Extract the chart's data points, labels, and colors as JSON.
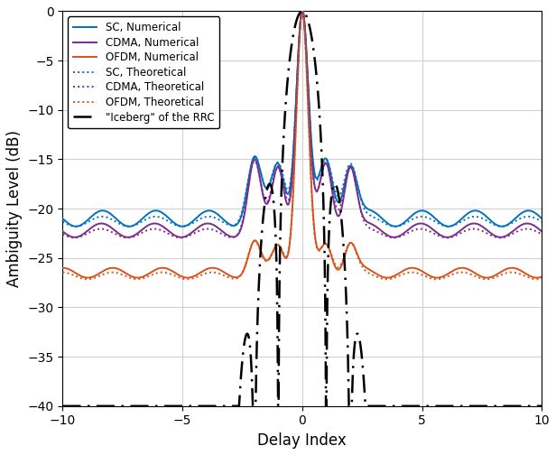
{
  "xlabel": "Delay Index",
  "ylabel": "Ambiguity Level (dB)",
  "xlim": [
    -10,
    10
  ],
  "ylim": [
    -40,
    0
  ],
  "yticks": [
    0,
    -5,
    -10,
    -15,
    -20,
    -25,
    -30,
    -35,
    -40
  ],
  "xticks": [
    -10,
    -5,
    0,
    5,
    10
  ],
  "sc_color": "#0072BD",
  "cdma_color": "#7B2D8B",
  "ofdm_color": "#D95319",
  "iceberg_color": "#000000",
  "sc_level": -21.0,
  "cdma_level": -22.2,
  "ofdm_level": -26.5,
  "legend_entries": [
    "SC, Numerical",
    "CDMA, Numerical",
    "OFDM, Numerical",
    "SC, Theoretical",
    "CDMA, Theoretical",
    "OFDM, Theoretical",
    "\"Iceberg\" of the RRC"
  ],
  "figsize": [
    6.16,
    5.04
  ],
  "dpi": 100
}
